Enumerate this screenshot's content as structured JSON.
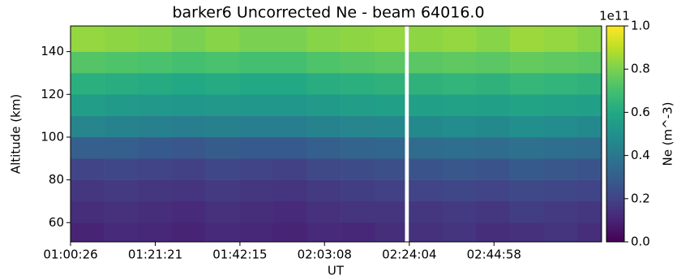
{
  "chart_data": {
    "type": "heatmap",
    "title": "barker6 Uncorrected Ne - beam 64016.0",
    "x_label": "UT",
    "y_label": "Altitude (km)",
    "colorbar_label": "Ne (m^-3)",
    "colorbar_offset": "1e11",
    "colormap": "viridis",
    "x_edges": [
      3626,
      4126,
      4626,
      5126,
      5626,
      6126,
      6626,
      7126,
      7626,
      8126,
      8576,
      8636,
      9136,
      9636,
      10136,
      10636,
      11136,
      11492
    ],
    "y_edges": [
      51,
      60,
      70,
      80,
      90,
      100,
      110,
      120,
      130,
      140,
      152
    ],
    "z": [
      [
        0.1,
        0.12,
        0.11,
        0.1,
        0.12,
        0.11,
        0.1,
        0.12,
        0.11,
        0.13,
        null,
        0.14,
        0.15,
        0.13,
        0.14,
        0.15,
        0.13
      ],
      [
        0.13,
        0.14,
        0.13,
        0.12,
        0.14,
        0.13,
        0.12,
        0.14,
        0.15,
        0.15,
        null,
        0.16,
        0.17,
        0.16,
        0.18,
        0.17,
        0.16
      ],
      [
        0.16,
        0.17,
        0.16,
        0.15,
        0.17,
        0.16,
        0.15,
        0.17,
        0.18,
        0.19,
        null,
        0.2,
        0.21,
        0.2,
        0.22,
        0.21,
        0.2
      ],
      [
        0.2,
        0.21,
        0.2,
        0.19,
        0.21,
        0.2,
        0.19,
        0.22,
        0.23,
        0.24,
        null,
        0.26,
        0.27,
        0.26,
        0.28,
        0.27,
        0.26
      ],
      [
        0.3,
        0.3,
        0.28,
        0.27,
        0.29,
        0.28,
        0.28,
        0.3,
        0.32,
        0.33,
        null,
        0.35,
        0.36,
        0.35,
        0.37,
        0.36,
        0.35
      ],
      [
        0.45,
        0.44,
        0.43,
        0.42,
        0.43,
        0.42,
        0.42,
        0.44,
        0.45,
        0.46,
        null,
        0.47,
        0.48,
        0.47,
        0.49,
        0.48,
        0.47
      ],
      [
        0.55,
        0.54,
        0.53,
        0.52,
        0.53,
        0.52,
        0.52,
        0.54,
        0.55,
        0.56,
        null,
        0.56,
        0.57,
        0.56,
        0.58,
        0.57,
        0.56
      ],
      [
        0.63,
        0.62,
        0.61,
        0.6,
        0.61,
        0.6,
        0.6,
        0.62,
        0.63,
        0.64,
        null,
        0.64,
        0.65,
        0.64,
        0.66,
        0.65,
        0.64
      ],
      [
        0.73,
        0.72,
        0.71,
        0.7,
        0.71,
        0.7,
        0.7,
        0.72,
        0.73,
        0.74,
        null,
        0.74,
        0.75,
        0.74,
        0.76,
        0.75,
        0.74
      ],
      [
        0.84,
        0.83,
        0.82,
        0.8,
        0.82,
        0.8,
        0.8,
        0.82,
        0.83,
        0.84,
        null,
        0.83,
        0.84,
        0.82,
        0.85,
        0.84,
        0.82
      ]
    ],
    "xlim": [
      3626,
      11492
    ],
    "xticks": [
      {
        "value": 3626,
        "label": "01:00:26"
      },
      {
        "value": 4881,
        "label": "01:21:21"
      },
      {
        "value": 6135,
        "label": "01:42:15"
      },
      {
        "value": 7388,
        "label": "02:03:08"
      },
      {
        "value": 8644,
        "label": "02:24:04"
      },
      {
        "value": 9898,
        "label": "02:44:58"
      }
    ],
    "ylim": [
      51,
      152
    ],
    "yticks": [
      60,
      80,
      100,
      120,
      140
    ],
    "clim": [
      0,
      1
    ],
    "cticks": [
      {
        "value": 0,
        "label": "0.0"
      },
      {
        "value": 0.2,
        "label": "0.2"
      },
      {
        "value": 0.4,
        "label": "0.4"
      },
      {
        "value": 0.6,
        "label": "0.6"
      },
      {
        "value": 0.8,
        "label": "0.8"
      },
      {
        "value": 1,
        "label": "1.0"
      }
    ]
  }
}
